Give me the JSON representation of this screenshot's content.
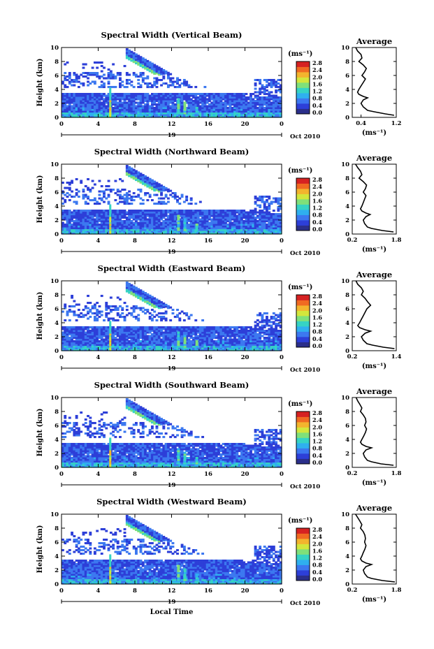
{
  "figure": {
    "xlabel": "Local Time",
    "colorbar": {
      "unit": "(ms⁻¹)",
      "ticks": [
        "0.0",
        "0.4",
        "0.8",
        "1.2",
        "1.6",
        "2.0",
        "2.4",
        "2.8"
      ],
      "colors": [
        "#2b2f8a",
        "#2d3fd8",
        "#3c78f0",
        "#2fb0ef",
        "#36d3c4",
        "#7fe07a",
        "#d3e63c",
        "#f3b42e",
        "#f06a22",
        "#d62222"
      ]
    },
    "date_label": "Oct 2010",
    "day_label": "19",
    "avg_title": "Average",
    "avg_unit": "(ms⁻¹)"
  },
  "chart_data": [
    {
      "type": "heatmap",
      "title": "Spectral Width (Vertical Beam)",
      "ylabel": "Height (km)",
      "xlabel": "",
      "x_ticks": [
        "0",
        "4",
        "8",
        "12",
        "16",
        "20",
        "0"
      ],
      "y_ticks": [
        "0",
        "2",
        "4",
        "6",
        "8",
        "10"
      ],
      "xlim": [
        0,
        24
      ],
      "ylim": [
        0,
        10
      ],
      "colorbar_range": [
        0.0,
        2.8
      ],
      "profile": {
        "type": "line",
        "title": "Average",
        "xlabel": "(ms⁻¹)",
        "xlim": [
          0.2,
          1.2
        ],
        "x_ticks": [
          "0.4",
          "1.2"
        ],
        "y_ticks": [
          "0",
          "2",
          "4",
          "6",
          "8",
          "10"
        ],
        "height_km": [
          0.3,
          0.5,
          0.8,
          1.0,
          1.5,
          2.0,
          2.5,
          2.8,
          3.0,
          3.3,
          3.6,
          4.0,
          4.5,
          5.0,
          5.5,
          6.0,
          6.5,
          7.0,
          7.5,
          8.0,
          8.5,
          9.0,
          9.5,
          10.0
        ],
        "width_ms": [
          1.15,
          0.95,
          0.7,
          0.55,
          0.45,
          0.4,
          0.45,
          0.55,
          0.45,
          0.35,
          0.32,
          0.35,
          0.4,
          0.45,
          0.5,
          0.42,
          0.48,
          0.52,
          0.45,
          0.35,
          0.42,
          0.4,
          0.32,
          0.28
        ]
      }
    },
    {
      "type": "heatmap",
      "title": "Spectral Width (Northward Beam)",
      "ylabel": "Height (km)",
      "xlabel": "",
      "x_ticks": [
        "0",
        "4",
        "8",
        "12",
        "16",
        "20",
        "0"
      ],
      "y_ticks": [
        "0",
        "2",
        "4",
        "6",
        "8",
        "10"
      ],
      "xlim": [
        0,
        24
      ],
      "ylim": [
        0,
        10
      ],
      "colorbar_range": [
        0.0,
        2.8
      ],
      "profile": {
        "type": "line",
        "title": "Average",
        "xlabel": "(ms⁻¹)",
        "xlim": [
          0.2,
          1.8
        ],
        "x_ticks": [
          "0.2",
          "1.8"
        ],
        "y_ticks": [
          "0",
          "2",
          "4",
          "6",
          "8",
          "10"
        ],
        "height_km": [
          0.3,
          0.5,
          0.8,
          1.0,
          1.5,
          2.0,
          2.5,
          2.8,
          3.0,
          3.3,
          3.6,
          4.0,
          4.5,
          5.0,
          5.5,
          6.0,
          6.5,
          7.0,
          7.5,
          8.0,
          8.5,
          9.0,
          9.5,
          10.0
        ],
        "width_ms": [
          1.7,
          1.3,
          0.9,
          0.75,
          0.65,
          0.6,
          0.7,
          0.85,
          0.7,
          0.55,
          0.5,
          0.55,
          0.6,
          0.65,
          0.7,
          0.6,
          0.68,
          0.72,
          0.6,
          0.45,
          0.55,
          0.5,
          0.4,
          0.32
        ]
      }
    },
    {
      "type": "heatmap",
      "title": "Spectral Width (Eastward Beam)",
      "ylabel": "Height (km)",
      "xlabel": "",
      "x_ticks": [
        "0",
        "4",
        "8",
        "12",
        "16",
        "20",
        "0"
      ],
      "y_ticks": [
        "0",
        "2",
        "4",
        "6",
        "8",
        "10"
      ],
      "xlim": [
        0,
        24
      ],
      "ylim": [
        0,
        10
      ],
      "colorbar_range": [
        0.0,
        2.8
      ],
      "profile": {
        "type": "line",
        "title": "Average",
        "xlabel": "(ms⁻¹)",
        "xlim": [
          0.2,
          1.4
        ],
        "x_ticks": [
          "0.2",
          "1.4"
        ],
        "y_ticks": [
          "0",
          "2",
          "4",
          "6",
          "8",
          "10"
        ],
        "height_km": [
          0.3,
          0.5,
          0.8,
          1.0,
          1.5,
          2.0,
          2.5,
          2.8,
          3.0,
          3.3,
          3.6,
          4.0,
          4.5,
          5.0,
          5.5,
          6.0,
          6.5,
          7.0,
          7.5,
          8.0,
          8.5,
          9.0,
          9.5,
          10.0
        ],
        "width_ms": [
          1.35,
          1.05,
          0.75,
          0.6,
          0.5,
          0.45,
          0.55,
          0.7,
          0.55,
          0.4,
          0.35,
          0.4,
          0.45,
          0.5,
          0.55,
          0.6,
          0.7,
          0.62,
          0.55,
          0.45,
          0.5,
          0.45,
          0.35,
          0.3
        ]
      }
    },
    {
      "type": "heatmap",
      "title": "Spectral Width (Southward Beam)",
      "ylabel": "Height (km)",
      "xlabel": "",
      "x_ticks": [
        "0",
        "4",
        "8",
        "12",
        "16",
        "20",
        "0"
      ],
      "y_ticks": [
        "0",
        "2",
        "4",
        "6",
        "8",
        "10"
      ],
      "xlim": [
        0,
        24
      ],
      "ylim": [
        0,
        10
      ],
      "colorbar_range": [
        0.0,
        2.8
      ],
      "profile": {
        "type": "line",
        "title": "Average",
        "xlabel": "(ms⁻¹)",
        "xlim": [
          0.2,
          1.8
        ],
        "x_ticks": [
          "0.2",
          "1.8"
        ],
        "y_ticks": [
          "0",
          "2",
          "4",
          "6",
          "8",
          "10"
        ],
        "height_km": [
          0.3,
          0.5,
          0.8,
          1.0,
          1.5,
          2.0,
          2.5,
          2.8,
          3.0,
          3.3,
          3.6,
          4.0,
          4.5,
          5.0,
          5.5,
          6.0,
          6.5,
          7.0,
          7.5,
          8.0,
          8.5,
          9.0,
          9.5,
          10.0
        ],
        "width_ms": [
          1.7,
          1.25,
          0.9,
          0.75,
          0.65,
          0.6,
          0.7,
          0.9,
          0.7,
          0.55,
          0.5,
          0.55,
          0.62,
          0.68,
          0.72,
          0.65,
          0.7,
          0.68,
          0.6,
          0.5,
          0.55,
          0.48,
          0.4,
          0.34
        ]
      }
    },
    {
      "type": "heatmap",
      "title": "Spectral Width (Westward Beam)",
      "ylabel": "Height (km)",
      "xlabel": "Local Time",
      "x_ticks": [
        "0",
        "4",
        "8",
        "12",
        "16",
        "20",
        "0"
      ],
      "y_ticks": [
        "0",
        "2",
        "4",
        "6",
        "8",
        "10"
      ],
      "xlim": [
        0,
        24
      ],
      "ylim": [
        0,
        10
      ],
      "colorbar_range": [
        0.0,
        2.8
      ],
      "profile": {
        "type": "line",
        "title": "Average",
        "xlabel": "(ms⁻¹)",
        "xlim": [
          0.2,
          1.8
        ],
        "x_ticks": [
          "0.2",
          "1.8"
        ],
        "y_ticks": [
          "0",
          "2",
          "4",
          "6",
          "8",
          "10"
        ],
        "height_km": [
          0.3,
          0.5,
          0.8,
          1.0,
          1.5,
          2.0,
          2.5,
          2.8,
          3.0,
          3.3,
          3.6,
          4.0,
          4.5,
          5.0,
          5.5,
          6.0,
          6.5,
          7.0,
          7.5,
          8.0,
          8.5,
          9.0,
          9.5,
          10.0
        ],
        "width_ms": [
          1.75,
          1.3,
          0.9,
          0.75,
          0.65,
          0.6,
          0.7,
          0.9,
          0.7,
          0.55,
          0.5,
          0.55,
          0.6,
          0.66,
          0.7,
          0.65,
          0.68,
          0.66,
          0.6,
          0.5,
          0.55,
          0.48,
          0.4,
          0.32
        ]
      }
    }
  ]
}
